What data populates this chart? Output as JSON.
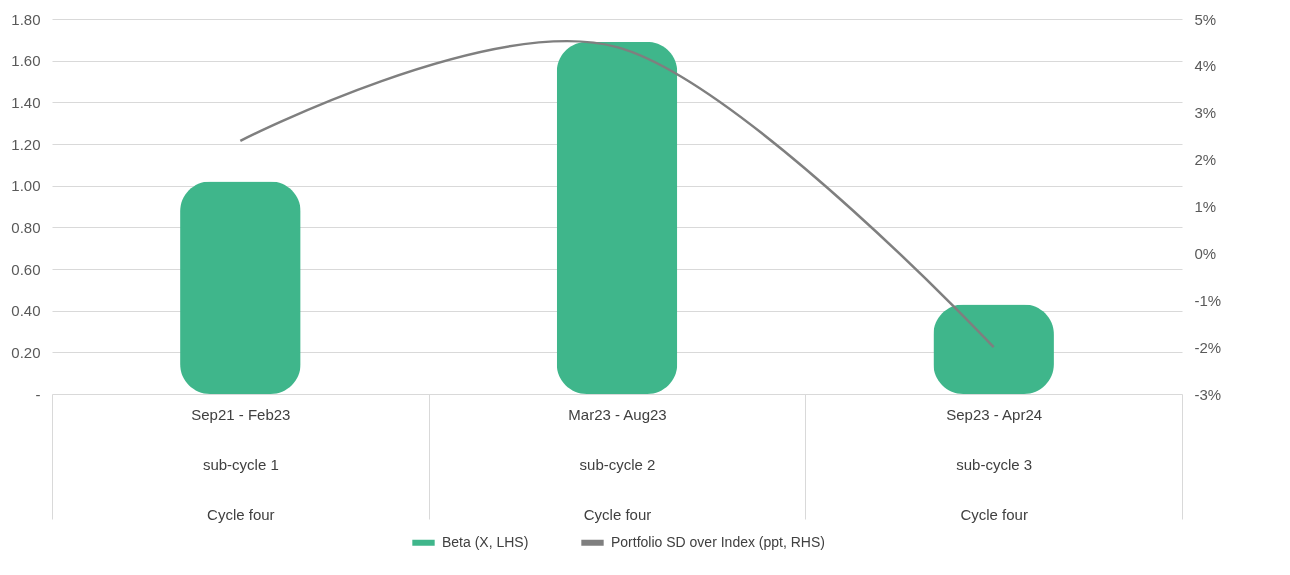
{
  "chart_data": {
    "type": "bar",
    "categories": [
      "Sep21 - Feb23\nsub-cycle 1\nCycle four",
      "Mar23 - Aug23\nsub-cycle 2\nCycle four",
      "Sep23 - Apr24\nsub-cycle 3\nCycle four"
    ],
    "series": [
      {
        "name": "Beta (X, LHS)",
        "color": "#3fb68b",
        "values": [
          1.02,
          1.69,
          0.43
        ]
      },
      {
        "name": "Portfolio SD over Index (ppt, RHS)",
        "type": "line",
        "axis": "y2",
        "color": "#7f7f7f",
        "values": [
          2.4,
          4.4,
          -2.0
        ]
      }
    ],
    "ylim": [
      0,
      1.8
    ],
    "yticks": [
      {
        "value": 0,
        "label": "-"
      },
      {
        "value": 0.2,
        "label": "0.20"
      },
      {
        "value": 0.4,
        "label": "0.40"
      },
      {
        "value": 0.6,
        "label": "0.60"
      },
      {
        "value": 0.8,
        "label": "0.80"
      },
      {
        "value": 1,
        "label": "1.00"
      },
      {
        "value": 1.2,
        "label": "1.20"
      },
      {
        "value": 1.4,
        "label": "1.40"
      },
      {
        "value": 1.6,
        "label": "1.60"
      },
      {
        "value": 1.8,
        "label": "1.80"
      }
    ],
    "y2lim": [
      -3,
      5
    ],
    "y2ticks": [
      {
        "value": -3,
        "label": "-3%"
      },
      {
        "value": -2,
        "label": "-2%"
      },
      {
        "value": -1,
        "label": "-1%"
      },
      {
        "value": 0,
        "label": "0%"
      },
      {
        "value": 1,
        "label": "1%"
      },
      {
        "value": 2,
        "label": "2%"
      },
      {
        "value": 3,
        "label": "3%"
      },
      {
        "value": 4,
        "label": "4%"
      },
      {
        "value": 5,
        "label": "5%"
      }
    ],
    "grid": "y",
    "legend": "bottom",
    "marker": "none",
    "line_style": "solid"
  }
}
